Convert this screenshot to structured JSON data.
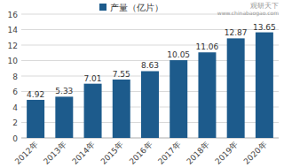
{
  "chart_data": {
    "type": "bar",
    "categories": [
      "2012年",
      "2013年",
      "2014年",
      "2015年",
      "2016年",
      "2017年",
      "2018年",
      "2019年",
      "2020年"
    ],
    "series": [
      {
        "name": "产量（亿片）",
        "color": "#1d5b8c",
        "values": [
          4.92,
          5.33,
          7.01,
          7.55,
          8.63,
          10.05,
          11.06,
          12.87,
          13.65
        ]
      }
    ],
    "ylim": [
      0,
      16
    ],
    "yticks": [
      0,
      2,
      4,
      6,
      8,
      10,
      12,
      14,
      16
    ],
    "grid": true,
    "data_labels": true,
    "legend": "top",
    "annotations": [
      "观研天下",
      "www.chinabaogao.com"
    ]
  }
}
